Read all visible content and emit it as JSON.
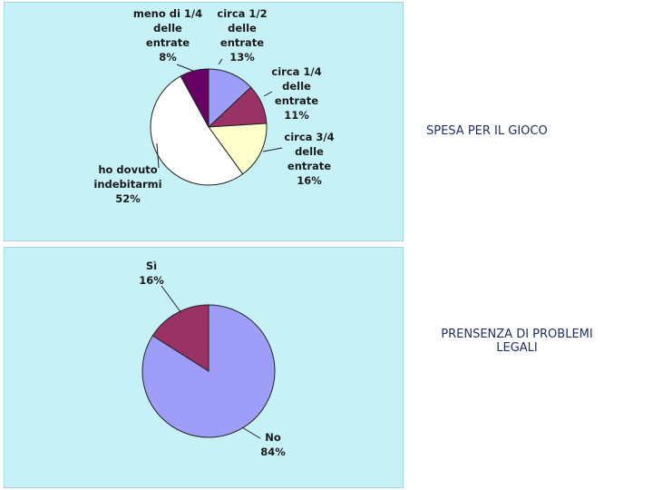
{
  "chart_data": [
    {
      "type": "pie",
      "title": "SPESA PER IL GIOCO",
      "slices": [
        {
          "label_lines": [
            "circa 1/2",
            "delle",
            "entrate",
            "13%"
          ],
          "value": 13,
          "color": "#9e9ef8"
        },
        {
          "label_lines": [
            "circa 1/4",
            "delle",
            "entrate",
            "11%"
          ],
          "value": 11,
          "color": "#993366"
        },
        {
          "label_lines": [
            "circa 3/4",
            "delle",
            "entrate",
            "16%"
          ],
          "value": 16,
          "color": "#ffffcc"
        },
        {
          "label_lines": [
            "ho dovuto",
            "indebitarmi",
            "52%"
          ],
          "value": 52,
          "color": "#ffffff"
        },
        {
          "label_lines": [
            "meno di 1/4",
            "delle",
            "entrate",
            "8%"
          ],
          "value": 8,
          "color": "#660066"
        }
      ]
    },
    {
      "type": "pie",
      "title": "PRENSENZA DI PROBLEMI LEGALI",
      "slices": [
        {
          "label_lines": [
            "No",
            "84%"
          ],
          "value": 84,
          "color": "#9e9ef8"
        },
        {
          "label_lines": [
            "Sì",
            "16%"
          ],
          "value": 16,
          "color": "#993366"
        }
      ]
    }
  ]
}
